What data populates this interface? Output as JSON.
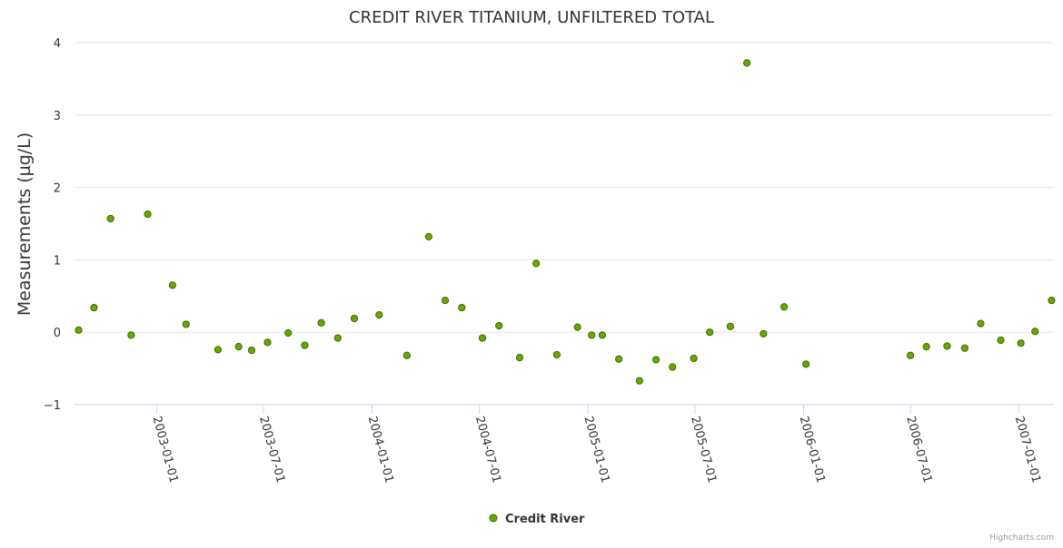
{
  "chart_data": {
    "type": "scatter",
    "title": "CREDIT RIVER TITANIUM, UNFILTERED TOTAL",
    "ylabel": "Measurements (µg/L)",
    "xlabel": "",
    "ylim": [
      -1,
      4
    ],
    "yticks": [
      "−1",
      "0",
      "1",
      "2",
      "3",
      "4"
    ],
    "ytick_values": [
      -1,
      0,
      1,
      2,
      3,
      4
    ],
    "xlim": [
      "2002-08-15",
      "2007-03-01"
    ],
    "xticks": [
      "2003-01-01",
      "2003-07-01",
      "2004-01-01",
      "2004-07-01",
      "2005-01-01",
      "2005-07-01",
      "2006-01-01",
      "2006-07-01",
      "2007-01-01"
    ],
    "grid": true,
    "legend": "bottom-center",
    "series": [
      {
        "name": "Credit River",
        "color": "#66aa00",
        "points": [
          {
            "x": "2002-08-22",
            "y": 0.03
          },
          {
            "x": "2002-09-17",
            "y": 0.34
          },
          {
            "x": "2002-10-15",
            "y": 1.57
          },
          {
            "x": "2002-11-19",
            "y": -0.04
          },
          {
            "x": "2002-12-17",
            "y": 1.63
          },
          {
            "x": "2003-01-28",
            "y": 0.65
          },
          {
            "x": "2003-02-20",
            "y": 0.11
          },
          {
            "x": "2003-04-15",
            "y": -0.24
          },
          {
            "x": "2003-05-20",
            "y": -0.2
          },
          {
            "x": "2003-06-11",
            "y": -0.25
          },
          {
            "x": "2003-07-08",
            "y": -0.14
          },
          {
            "x": "2003-08-12",
            "y": -0.01
          },
          {
            "x": "2003-09-09",
            "y": -0.18
          },
          {
            "x": "2003-10-07",
            "y": 0.13
          },
          {
            "x": "2003-11-04",
            "y": -0.08
          },
          {
            "x": "2003-12-02",
            "y": 0.19
          },
          {
            "x": "2004-01-13",
            "y": 0.24
          },
          {
            "x": "2004-02-29",
            "y": -0.32
          },
          {
            "x": "2004-04-06",
            "y": 1.32
          },
          {
            "x": "2004-05-04",
            "y": 0.44
          },
          {
            "x": "2004-06-01",
            "y": 0.34
          },
          {
            "x": "2004-07-06",
            "y": -0.08
          },
          {
            "x": "2004-08-03",
            "y": 0.09
          },
          {
            "x": "2004-09-07",
            "y": -0.35
          },
          {
            "x": "2004-10-05",
            "y": 0.95
          },
          {
            "x": "2004-11-09",
            "y": -0.31
          },
          {
            "x": "2004-12-14",
            "y": 0.07
          },
          {
            "x": "2005-01-07",
            "y": -0.04
          },
          {
            "x": "2005-01-25",
            "y": -0.04
          },
          {
            "x": "2005-02-22",
            "y": -0.37
          },
          {
            "x": "2005-03-29",
            "y": -0.67
          },
          {
            "x": "2005-04-26",
            "y": -0.38
          },
          {
            "x": "2005-05-24",
            "y": -0.48
          },
          {
            "x": "2005-06-29",
            "y": -0.36
          },
          {
            "x": "2005-07-26",
            "y": 0.0
          },
          {
            "x": "2005-08-30",
            "y": 0.08
          },
          {
            "x": "2005-09-27",
            "y": 3.72
          },
          {
            "x": "2005-10-25",
            "y": -0.02
          },
          {
            "x": "2005-11-29",
            "y": 0.35
          },
          {
            "x": "2006-01-05",
            "y": -0.44
          },
          {
            "x": "2006-07-01",
            "y": -0.32
          },
          {
            "x": "2006-07-28",
            "y": -0.2
          },
          {
            "x": "2006-09-01",
            "y": -0.19
          },
          {
            "x": "2006-10-01",
            "y": -0.22
          },
          {
            "x": "2006-10-28",
            "y": 0.12
          },
          {
            "x": "2006-12-01",
            "y": -0.11
          },
          {
            "x": "2007-01-04",
            "y": -0.15
          },
          {
            "x": "2007-01-28",
            "y": 0.01
          },
          {
            "x": "2007-02-25",
            "y": 0.44
          }
        ]
      }
    ]
  },
  "credits": "Highcharts.com"
}
